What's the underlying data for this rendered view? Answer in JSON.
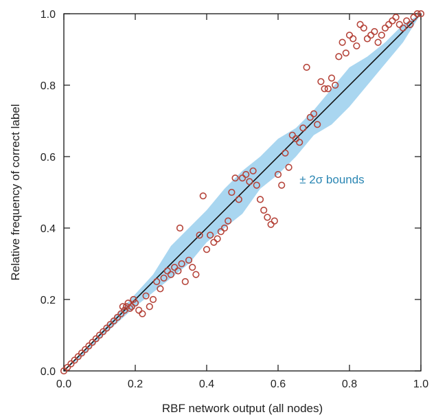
{
  "chart_data": {
    "type": "scatter",
    "xlabel": "RBF network output (all nodes)",
    "ylabel": "Relative frequency of correct label",
    "xlim": [
      0,
      1
    ],
    "ylim": [
      0,
      1
    ],
    "x_ticks": [
      "0.0",
      "0.2",
      "0.4",
      "0.6",
      "0.8",
      "1.0"
    ],
    "y_ticks": [
      "0.0",
      "0.2",
      "0.4",
      "0.6",
      "0.8",
      "1.0"
    ],
    "grid": false,
    "annotation": "± 2σ bounds",
    "colors": {
      "points": "#b5443a",
      "band": "#a9d6f0",
      "diagonal": "#111111",
      "annotation": "#2a86b3"
    },
    "band": {
      "x": [
        0.0,
        0.05,
        0.1,
        0.15,
        0.2,
        0.25,
        0.3,
        0.35,
        0.4,
        0.45,
        0.5,
        0.55,
        0.6,
        0.65,
        0.7,
        0.75,
        0.8,
        0.85,
        0.9,
        0.95,
        1.0
      ],
      "upper": [
        0.0,
        0.05,
        0.105,
        0.16,
        0.215,
        0.27,
        0.35,
        0.4,
        0.45,
        0.51,
        0.56,
        0.6,
        0.65,
        0.68,
        0.73,
        0.79,
        0.85,
        0.88,
        0.92,
        0.97,
        1.0
      ],
      "lower": [
        0.0,
        0.04,
        0.09,
        0.135,
        0.18,
        0.22,
        0.26,
        0.3,
        0.36,
        0.4,
        0.44,
        0.51,
        0.55,
        0.6,
        0.66,
        0.69,
        0.74,
        0.8,
        0.86,
        0.92,
        1.0
      ]
    },
    "series": [
      {
        "x": [
          0.0,
          0.01,
          0.02,
          0.03,
          0.04,
          0.05,
          0.06,
          0.07,
          0.08,
          0.09,
          0.1,
          0.11,
          0.12,
          0.13,
          0.14,
          0.15,
          0.16,
          0.165,
          0.17,
          0.175,
          0.18,
          0.185,
          0.19,
          0.195,
          0.2,
          0.21,
          0.22,
          0.23,
          0.24,
          0.25,
          0.26,
          0.27,
          0.28,
          0.29,
          0.3,
          0.31,
          0.32,
          0.325,
          0.33,
          0.34,
          0.35,
          0.36,
          0.37,
          0.38,
          0.39,
          0.4,
          0.41,
          0.42,
          0.43,
          0.44,
          0.45,
          0.46,
          0.47,
          0.48,
          0.49,
          0.5,
          0.51,
          0.52,
          0.53,
          0.54,
          0.55,
          0.56,
          0.57,
          0.58,
          0.59,
          0.6,
          0.61,
          0.62,
          0.63,
          0.64,
          0.65,
          0.66,
          0.67,
          0.68,
          0.69,
          0.7,
          0.71,
          0.72,
          0.73,
          0.74,
          0.75,
          0.76,
          0.77,
          0.78,
          0.79,
          0.8,
          0.81,
          0.82,
          0.83,
          0.84,
          0.85,
          0.86,
          0.87,
          0.88,
          0.89,
          0.9,
          0.91,
          0.92,
          0.93,
          0.94,
          0.95,
          0.96,
          0.97,
          0.98,
          0.99,
          1.0
        ],
        "y": [
          0.0,
          0.01,
          0.02,
          0.03,
          0.04,
          0.05,
          0.06,
          0.07,
          0.08,
          0.09,
          0.1,
          0.11,
          0.12,
          0.13,
          0.14,
          0.15,
          0.16,
          0.18,
          0.17,
          0.18,
          0.19,
          0.175,
          0.18,
          0.2,
          0.19,
          0.17,
          0.16,
          0.21,
          0.18,
          0.2,
          0.25,
          0.23,
          0.26,
          0.28,
          0.27,
          0.29,
          0.28,
          0.4,
          0.3,
          0.25,
          0.31,
          0.29,
          0.27,
          0.38,
          0.49,
          0.34,
          0.38,
          0.36,
          0.37,
          0.39,
          0.4,
          0.42,
          0.5,
          0.54,
          0.48,
          0.54,
          0.55,
          0.53,
          0.56,
          0.52,
          0.48,
          0.45,
          0.43,
          0.41,
          0.42,
          0.55,
          0.52,
          0.61,
          0.57,
          0.66,
          0.65,
          0.64,
          0.68,
          0.85,
          0.71,
          0.72,
          0.69,
          0.81,
          0.79,
          0.79,
          0.82,
          0.8,
          0.88,
          0.92,
          0.89,
          0.94,
          0.93,
          0.91,
          0.97,
          0.96,
          0.93,
          0.94,
          0.95,
          0.92,
          0.94,
          0.96,
          0.97,
          0.98,
          0.99,
          0.97,
          0.96,
          0.98,
          0.97,
          0.99,
          1.0,
          1.0
        ]
      }
    ]
  }
}
